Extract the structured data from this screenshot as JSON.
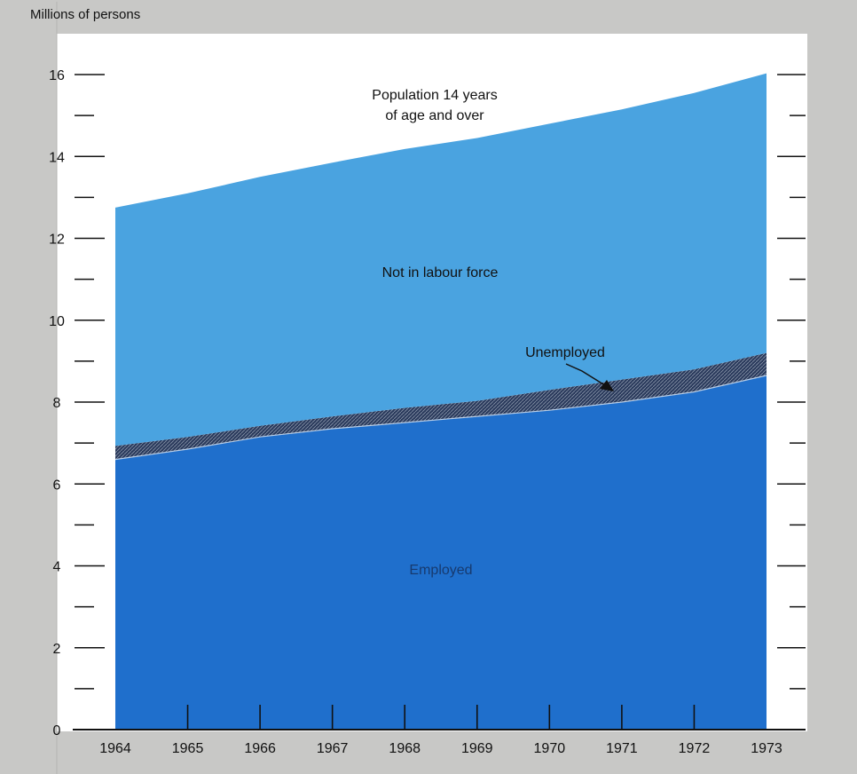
{
  "chart_data": {
    "type": "area",
    "ylabel": "Millions of persons",
    "x": [
      1964,
      1965,
      1966,
      1967,
      1968,
      1969,
      1970,
      1971,
      1972,
      1973
    ],
    "x_tick_labels": [
      "1964",
      "1965",
      "1966",
      "1967",
      "1968",
      "1969",
      "1970",
      "1971",
      "1972",
      "1973"
    ],
    "y_tick_labels": [
      "0",
      "2",
      "4",
      "6",
      "8",
      "10",
      "12",
      "14",
      "16"
    ],
    "ylim": [
      0,
      17
    ],
    "grid": false,
    "series": [
      {
        "name": "Employed",
        "values": [
          6.6,
          6.85,
          7.15,
          7.35,
          7.5,
          7.65,
          7.8,
          8.0,
          8.25,
          8.65
        ],
        "color": "#1f6fcc"
      },
      {
        "name": "Unemployed",
        "values": [
          0.33,
          0.3,
          0.27,
          0.3,
          0.36,
          0.38,
          0.5,
          0.55,
          0.55,
          0.55
        ],
        "color": "#2a3a5c"
      },
      {
        "name": "Not in labour force",
        "values": [
          5.82,
          5.95,
          6.08,
          6.2,
          6.32,
          6.42,
          6.5,
          6.6,
          6.75,
          6.83
        ],
        "color": "#4aa3e0"
      }
    ],
    "population_total": [
      12.75,
      13.1,
      13.5,
      13.85,
      14.18,
      14.45,
      14.8,
      15.15,
      15.55,
      16.03
    ],
    "annotations": {
      "population": [
        "Population 14 years",
        "of age and over"
      ],
      "not_in_labour_force": "Not in labour force",
      "unemployed": "Unemployed",
      "employed": "Employed"
    }
  },
  "colors": {
    "background": "#c8c8c6",
    "plot_background": "#ffffff",
    "employed": "#1f6fcc",
    "unemployed": "#2a3a5c",
    "not_in_labour_force": "#4aa3e0",
    "ink": "#111111"
  }
}
